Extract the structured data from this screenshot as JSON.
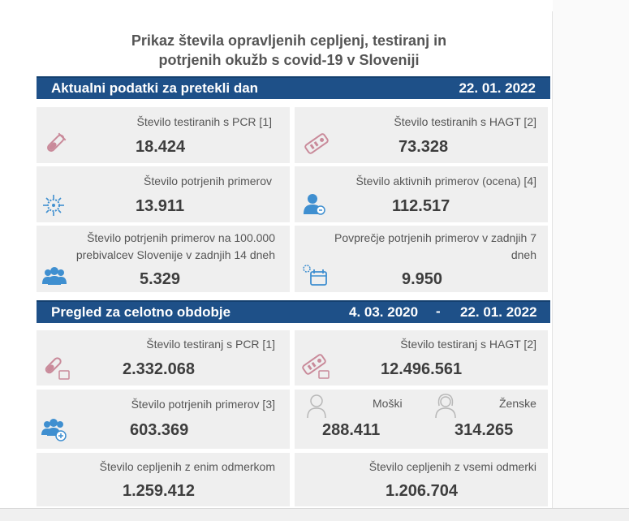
{
  "title": {
    "line1": "Prikaz števila opravljenih cepljenj, testiranj in",
    "line2": "potrjenih okužb s covid-19 v Sloveniji"
  },
  "daily": {
    "header": "Aktualni podatki za pretekli dan",
    "date": "22. 01. 2022",
    "cards": {
      "pcr": {
        "label": "Število testiranih s PCR [1]",
        "value": "18.424",
        "icon": "test-tube-icon"
      },
      "hagt": {
        "label": "Število testiranih s HAGT [2]",
        "value": "73.328",
        "icon": "rapid-test-icon"
      },
      "confirmed": {
        "label": "Število potrjenih primerov",
        "value": "13.911",
        "icon": "virus-icon"
      },
      "active": {
        "label": "Število aktivnih primerov (ocena) [4]",
        "value": "112.517",
        "icon": "person-icon"
      },
      "per100k": {
        "label1": "Število potrjenih primerov na 100.000",
        "label2": "prebivalcev Slovenije v zadnjih 14 dneh",
        "value": "5.329",
        "icon": "group-icon"
      },
      "avg7": {
        "label1": "Povprečje potrjenih primerov v zadnjih 7",
        "label2": "dneh",
        "value": "9.950",
        "icon": "calendar-icon"
      }
    }
  },
  "overall": {
    "header": "Pregled za celotno obdobje",
    "date_from": "4. 03. 2020",
    "dash": "-",
    "date_to": "22. 01. 2022",
    "cards": {
      "pcr": {
        "label": "Število testiranj s PCR [1]",
        "value": "2.332.068",
        "icon": "test-tube-icon"
      },
      "hagt": {
        "label": "Število testiranj s HAGT [2]",
        "value": "12.496.561",
        "icon": "rapid-test-icon"
      },
      "confirmed": {
        "label": "Število potrjenih primerov [3]",
        "value": "603.369",
        "icon": "group-plus-icon"
      },
      "male": {
        "label": "Moški",
        "value": "288.411",
        "icon": "male-icon"
      },
      "female": {
        "label": "Ženske",
        "value": "314.265",
        "icon": "female-icon"
      },
      "vacc1": {
        "label": "Število cepljenih z enim odmerkom",
        "value": "1.259.412"
      },
      "vaccall": {
        "label": "Število cepljenih z vsemi odmerki",
        "value": "1.206.704"
      }
    }
  },
  "colors": {
    "band": "#1e5088",
    "card": "#efefef",
    "icon_pink": "#c98a9a",
    "icon_blue": "#3f8fd0"
  }
}
